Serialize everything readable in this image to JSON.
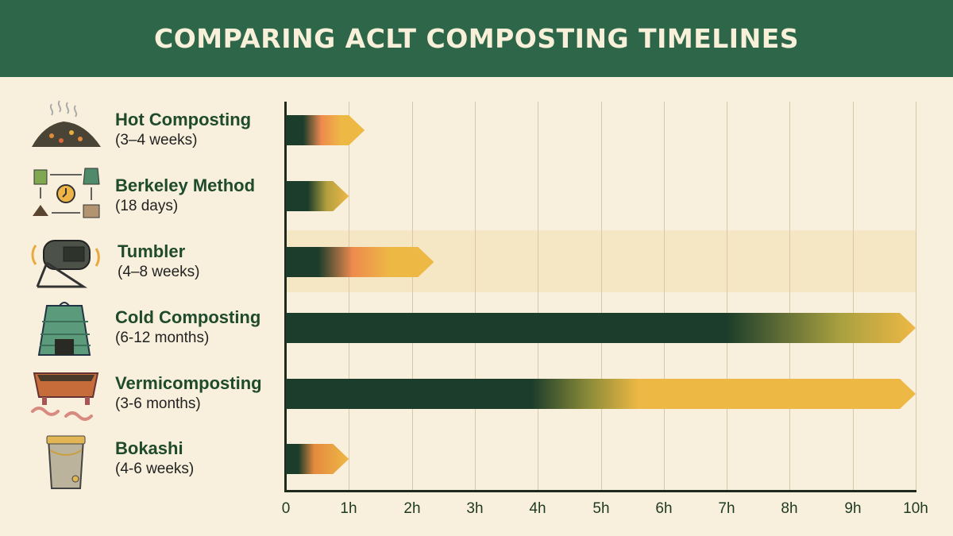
{
  "title": "COMPARING ACLT COMPOSTING TIMELINES",
  "colors": {
    "header": "#2e6649",
    "background": "#f8f0dc",
    "bar_dark": "#1c3d2b",
    "bar_orange": "#ee8a4e",
    "bar_yellow": "#eeb845",
    "highlight_band": "#f4e4bf"
  },
  "methods": [
    {
      "name": "Hot Composting",
      "duration": "(3–4 weeks)",
      "icon": "steaming-compost-pile-icon"
    },
    {
      "name": "Berkeley Method",
      "duration": "(18 days)",
      "icon": "process-cycle-clock-icon"
    },
    {
      "name": "Tumbler",
      "duration": "(4–8 weeks)",
      "icon": "compost-tumbler-icon"
    },
    {
      "name": "Cold Composting",
      "duration": "(6-12 months)",
      "icon": "compost-bin-icon"
    },
    {
      "name": "Vermicomposting",
      "duration": "(3-6 months)",
      "icon": "worm-bin-icon"
    },
    {
      "name": "Bokashi",
      "duration": "(4-6 weeks)",
      "icon": "bokashi-bucket-icon"
    }
  ],
  "axis": {
    "ticks": [
      "0",
      "1h",
      "2h",
      "3h",
      "4h",
      "5h",
      "6h",
      "7h",
      "8h",
      "9h",
      "10h"
    ]
  },
  "chart_data": {
    "type": "bar",
    "orientation": "horizontal",
    "title": "COMPARING ACLT COMPOSTING TIMELINES",
    "categories": [
      "Hot Composting",
      "Berkeley Method",
      "Tumbler",
      "Cold Composting",
      "Vermicomposting",
      "Bokashi"
    ],
    "category_sublabels": [
      "(3–4 weeks)",
      "(18 days)",
      "(4–8 weeks)",
      "(6-12 months)",
      "(3-6 months)",
      "(4-6 weeks)"
    ],
    "values": [
      1.25,
      1.0,
      2.35,
      10,
      10,
      1.0
    ],
    "xlabel": "",
    "ylabel": "",
    "xlim": [
      0,
      10
    ],
    "x_ticks": [
      "0",
      "1h",
      "2h",
      "3h",
      "4h",
      "5h",
      "6h",
      "7h",
      "8h",
      "9h",
      "10h"
    ],
    "grid": "vertical",
    "highlighted_category": "Tumbler",
    "bar_style": "arrow-tipped gradient (dark green to orange to yellow)"
  }
}
